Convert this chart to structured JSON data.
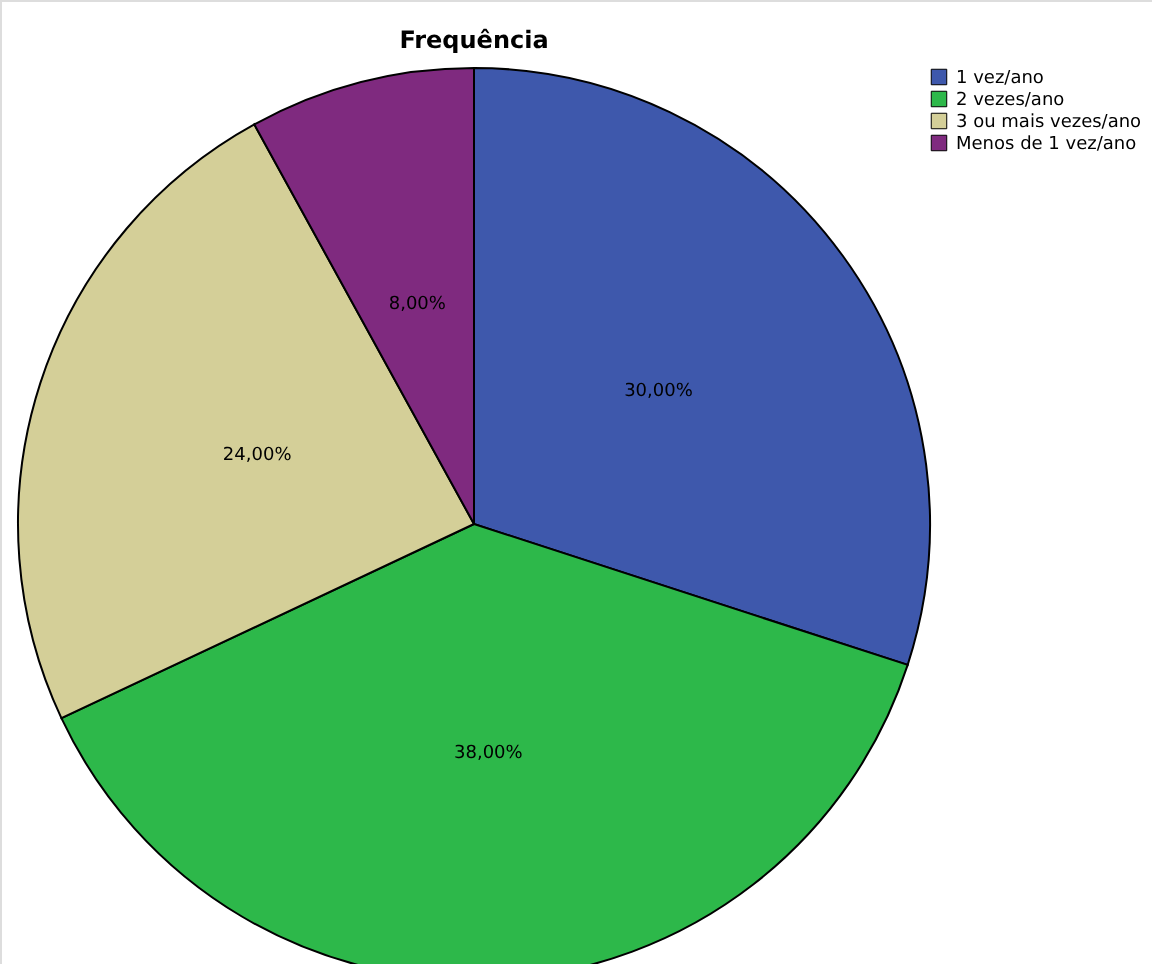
{
  "chart_data": {
    "type": "pie",
    "title": "Frequência",
    "categories": [
      "1 vez/ano",
      "2 vezes/ano",
      "3 ou mais vezes/ano",
      "Menos de 1 vez/ano"
    ],
    "values": [
      30,
      38,
      24,
      8
    ],
    "colors": [
      "#3e58ac",
      "#2db84a",
      "#d4cf98",
      "#7f2a7f"
    ],
    "value_labels": [
      "30,00%",
      "38,00%",
      "24,00%",
      "8,00%"
    ],
    "legend": "top right"
  }
}
